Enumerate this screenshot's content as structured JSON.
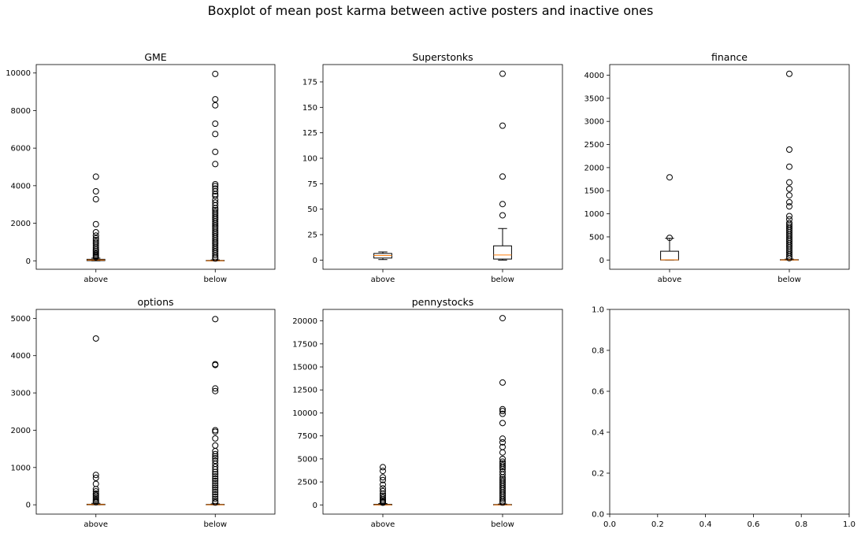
{
  "figure": {
    "suptitle": "Boxplot of mean post karma between active posters and inactive ones"
  },
  "chart_data": [
    {
      "type": "boxplot",
      "title": "GME",
      "categories": [
        "above",
        "below"
      ],
      "ylim": [
        -450,
        10450
      ],
      "yticks": [
        0,
        2000,
        4000,
        6000,
        8000,
        10000
      ],
      "series": [
        {
          "category": "above",
          "q1": 10,
          "median": 40,
          "q3": 80,
          "whisker_low": 0,
          "whisker_high": 140,
          "outliers": [
            4480,
            3700,
            3280,
            1950,
            1520,
            1340,
            1200,
            1100,
            1000,
            900,
            800,
            700,
            600,
            520,
            440,
            370,
            300,
            240,
            190
          ]
        },
        {
          "category": "below",
          "q1": 0,
          "median": 5,
          "q3": 20,
          "whisker_low": 0,
          "whisker_high": 50,
          "outliers": [
            9950,
            8600,
            8280,
            7300,
            6750,
            5800,
            5150,
            4080,
            3980,
            3850,
            3700,
            3550,
            3450,
            3250,
            3100,
            2950,
            2800,
            2700,
            2600,
            2500,
            2400,
            2300,
            2200,
            2100,
            2000,
            1900,
            1800,
            1700,
            1600,
            1500,
            1400,
            1300,
            1200,
            1100,
            1000,
            900,
            800,
            700,
            600,
            500,
            400,
            300,
            200,
            120
          ]
        }
      ]
    },
    {
      "type": "boxplot",
      "title": "Superstonks",
      "categories": [
        "above",
        "below"
      ],
      "ylim": [
        -9,
        192
      ],
      "yticks": [
        0,
        25,
        50,
        75,
        100,
        125,
        150,
        175
      ],
      "series": [
        {
          "category": "above",
          "q1": 2,
          "median": 4.5,
          "q3": 6.5,
          "whisker_low": 0.5,
          "whisker_high": 8,
          "outliers": []
        },
        {
          "category": "below",
          "q1": 1,
          "median": 5,
          "q3": 14,
          "whisker_low": 0,
          "whisker_high": 31,
          "outliers": [
            183,
            132,
            82,
            55,
            44
          ]
        }
      ]
    },
    {
      "type": "boxplot",
      "title": "finance",
      "categories": [
        "above",
        "below"
      ],
      "ylim": [
        -200,
        4230
      ],
      "yticks": [
        0,
        500,
        1000,
        1500,
        2000,
        2500,
        3000,
        3500,
        4000
      ],
      "series": [
        {
          "category": "above",
          "q1": 0,
          "median": 5,
          "q3": 190,
          "whisker_low": 0,
          "whisker_high": 470,
          "outliers": [
            1790,
            480
          ]
        },
        {
          "category": "below",
          "q1": 0,
          "median": 2,
          "q3": 8,
          "whisker_low": 0,
          "whisker_high": 20,
          "outliers": [
            4030,
            2390,
            2020,
            1680,
            1540,
            1400,
            1250,
            1160,
            950,
            880,
            800,
            760,
            720,
            680,
            640,
            600,
            560,
            520,
            480,
            440,
            400,
            360,
            320,
            280,
            240,
            200,
            160,
            120,
            80,
            40
          ]
        }
      ]
    },
    {
      "type": "boxplot",
      "title": "options",
      "categories": [
        "above",
        "below"
      ],
      "ylim": [
        -250,
        5240
      ],
      "yticks": [
        0,
        1000,
        2000,
        3000,
        4000,
        5000
      ],
      "series": [
        {
          "category": "above",
          "q1": 0,
          "median": 5,
          "q3": 15,
          "whisker_low": 0,
          "whisker_high": 40,
          "outliers": [
            4460,
            800,
            720,
            560,
            420,
            360,
            300,
            260,
            220,
            180,
            140,
            100,
            70
          ]
        },
        {
          "category": "below",
          "q1": 0,
          "median": 2,
          "q3": 10,
          "whisker_low": 0,
          "whisker_high": 25,
          "outliers": [
            4980,
            3770,
            3750,
            3120,
            3050,
            2000,
            1960,
            1780,
            1590,
            1440,
            1360,
            1300,
            1250,
            1180,
            1100,
            1020,
            950,
            880,
            820,
            760,
            700,
            640,
            580,
            520,
            460,
            400,
            340,
            280,
            220,
            160,
            100,
            60
          ]
        }
      ]
    },
    {
      "type": "boxplot",
      "title": "pennystocks",
      "categories": [
        "above",
        "below"
      ],
      "ylim": [
        -1000,
        21250
      ],
      "yticks": [
        0,
        2500,
        5000,
        7500,
        10000,
        12500,
        15000,
        17500,
        20000
      ],
      "series": [
        {
          "category": "above",
          "q1": 0,
          "median": 10,
          "q3": 60,
          "whisker_low": 0,
          "whisker_high": 150,
          "outliers": [
            4100,
            3700,
            3000,
            2700,
            2200,
            1800,
            1500,
            1200,
            1000,
            800,
            600,
            450,
            330,
            240
          ]
        },
        {
          "category": "below",
          "q1": 0,
          "median": 5,
          "q3": 40,
          "whisker_low": 0,
          "whisker_high": 100,
          "outliers": [
            20300,
            13300,
            10400,
            10200,
            9900,
            8900,
            7200,
            6800,
            6300,
            5700,
            5000,
            4700,
            4500,
            4300,
            4100,
            3900,
            3600,
            3300,
            3000,
            2800,
            2600,
            2400,
            2200,
            2000,
            1800,
            1600,
            1400,
            1200,
            1000,
            800,
            600,
            400,
            250
          ]
        }
      ]
    },
    {
      "type": "empty",
      "title": "",
      "xlim": [
        0,
        1
      ],
      "ylim": [
        0,
        1
      ],
      "xticks": [
        "0.0",
        "0.2",
        "0.4",
        "0.6",
        "0.8",
        "1.0"
      ],
      "yticks": [
        "0.0",
        "0.2",
        "0.4",
        "0.6",
        "0.8",
        "1.0"
      ]
    }
  ]
}
